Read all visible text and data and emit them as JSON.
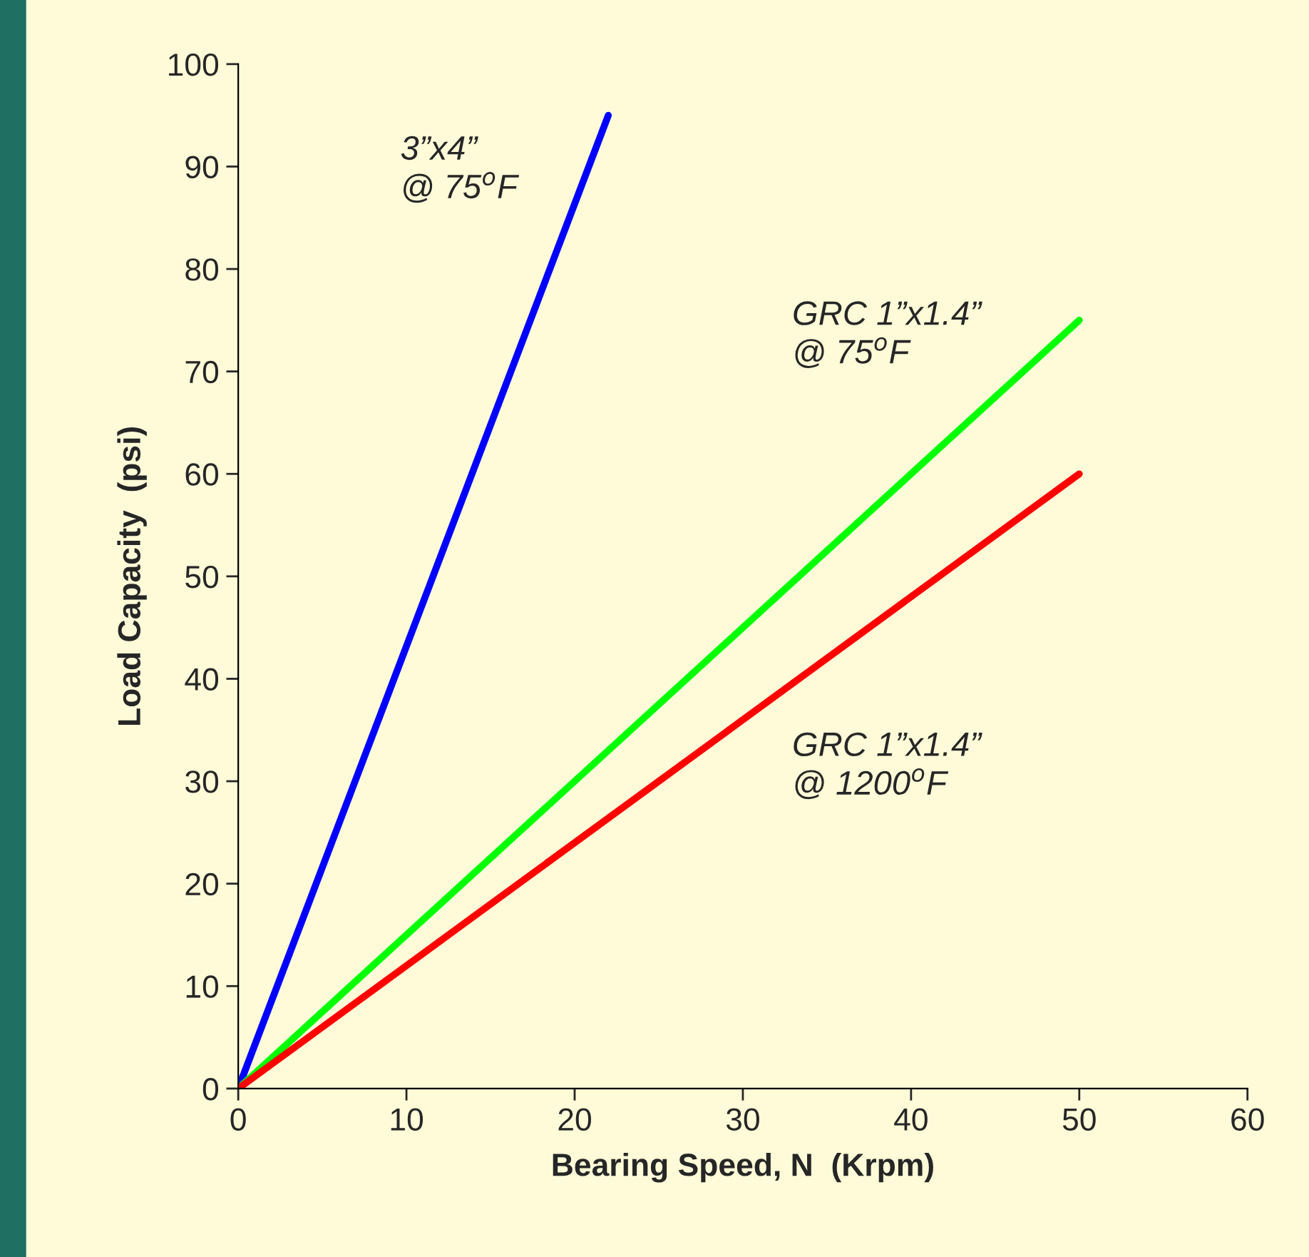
{
  "chart_data": {
    "type": "line",
    "xlabel": "Bearing Speed, N  (Krpm)",
    "ylabel": "Load Capacity  (psi)",
    "xlim": [
      0,
      60
    ],
    "ylim": [
      0,
      100
    ],
    "xticks": [
      0,
      10,
      20,
      30,
      40,
      50,
      60
    ],
    "yticks": [
      0,
      10,
      20,
      30,
      40,
      50,
      60,
      70,
      80,
      90,
      100
    ],
    "grid": false,
    "legend": false,
    "marker": "none",
    "line_style": "solid",
    "series": [
      {
        "name": "3”x4”\n@ 75$^{o}$F",
        "color": "#0000ff",
        "x": [
          0,
          22
        ],
        "values": [
          0,
          95
        ]
      },
      {
        "name": "GRC 1”x1.4”\n@ 75$^{o}$F",
        "color": "#00ff00",
        "x": [
          0,
          50
        ],
        "values": [
          0,
          75
        ]
      },
      {
        "name": "GRC 1”x1.4”\n@ 1200$^{o}$F",
        "color": "#ff0000",
        "x": [
          0,
          50
        ],
        "values": [
          0,
          60
        ]
      }
    ]
  }
}
